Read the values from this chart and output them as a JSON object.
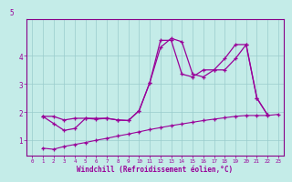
{
  "xlabel": "Windchill (Refroidissement éolien,°C)",
  "bg_color": "#c4ece8",
  "line_color": "#990099",
  "grid_color": "#99cccc",
  "axis_color": "#880088",
  "xlim": [
    -0.5,
    23.5
  ],
  "ylim": [
    0.45,
    5.3
  ],
  "xticks": [
    0,
    1,
    2,
    3,
    4,
    5,
    6,
    7,
    8,
    9,
    10,
    11,
    12,
    13,
    14,
    15,
    16,
    17,
    18,
    19,
    20,
    21,
    22,
    23
  ],
  "yticks": [
    1,
    2,
    3,
    4
  ],
  "ytop_label": "5",
  "line1_x": [
    1,
    2,
    3,
    4,
    5,
    6,
    7,
    8,
    9,
    10,
    11,
    12,
    13,
    14,
    15,
    16,
    17,
    18,
    19,
    20,
    21,
    22
  ],
  "line1_y": [
    1.85,
    1.6,
    1.35,
    1.42,
    1.78,
    1.75,
    1.78,
    1.72,
    1.7,
    2.05,
    3.05,
    4.3,
    4.62,
    4.5,
    3.35,
    3.25,
    3.5,
    3.5,
    3.9,
    4.4,
    2.5,
    1.9
  ],
  "line2_x": [
    1,
    2,
    3,
    4,
    5,
    6,
    7,
    8,
    9,
    10,
    11,
    12,
    13,
    14,
    15,
    16,
    17,
    18,
    19,
    20,
    21,
    22
  ],
  "line2_y": [
    1.85,
    1.85,
    1.72,
    1.78,
    1.78,
    1.78,
    1.78,
    1.72,
    1.7,
    2.05,
    3.05,
    4.55,
    4.55,
    3.35,
    3.25,
    3.5,
    3.5,
    3.9,
    4.4,
    4.4,
    2.5,
    1.9
  ],
  "line3_x": [
    1,
    2,
    3,
    4,
    5,
    6,
    7,
    8,
    9,
    10,
    11,
    12,
    13,
    14,
    15,
    16,
    17,
    18,
    19,
    20,
    21,
    22,
    23
  ],
  "line3_y": [
    0.72,
    0.68,
    0.78,
    0.85,
    0.92,
    1.0,
    1.07,
    1.15,
    1.22,
    1.3,
    1.38,
    1.45,
    1.52,
    1.58,
    1.64,
    1.7,
    1.75,
    1.8,
    1.85,
    1.88,
    1.88,
    1.88,
    1.92
  ]
}
